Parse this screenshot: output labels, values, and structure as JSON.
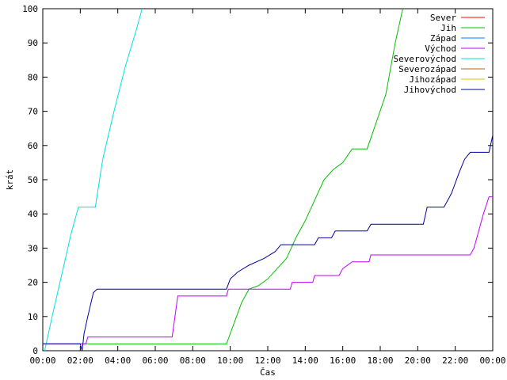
{
  "chart_data": {
    "type": "line",
    "title": "",
    "xlabel": "Čas",
    "ylabel": "krát",
    "xlim": [
      0,
      24
    ],
    "ylim": [
      0,
      100
    ],
    "x_ticks": [
      {
        "value": 0,
        "label": "00:00"
      },
      {
        "value": 2,
        "label": "02:00"
      },
      {
        "value": 4,
        "label": "04:00"
      },
      {
        "value": 6,
        "label": "06:00"
      },
      {
        "value": 8,
        "label": "08:00"
      },
      {
        "value": 10,
        "label": "10:00"
      },
      {
        "value": 12,
        "label": "12:00"
      },
      {
        "value": 14,
        "label": "14:00"
      },
      {
        "value": 16,
        "label": "16:00"
      },
      {
        "value": 18,
        "label": "18:00"
      },
      {
        "value": 20,
        "label": "20:00"
      },
      {
        "value": 22,
        "label": "22:00"
      },
      {
        "value": 24,
        "label": "00:00"
      }
    ],
    "y_ticks": [
      0,
      10,
      20,
      30,
      40,
      50,
      60,
      70,
      80,
      90,
      100
    ],
    "grid": false,
    "legend_position": "top-right",
    "series": [
      {
        "name": "Sever",
        "color": "#ff0000",
        "points": []
      },
      {
        "name": "Jih",
        "color": "#00c000",
        "points": [
          [
            0,
            2
          ],
          [
            9.8,
            2
          ],
          [
            10.2,
            8
          ],
          [
            10.6,
            14
          ],
          [
            11.0,
            18
          ],
          [
            11.5,
            19
          ],
          [
            12.0,
            21
          ],
          [
            12.5,
            24
          ],
          [
            13.0,
            27
          ],
          [
            13.5,
            33
          ],
          [
            14.0,
            38
          ],
          [
            14.5,
            44
          ],
          [
            15.0,
            50
          ],
          [
            15.5,
            53
          ],
          [
            16.0,
            55
          ],
          [
            16.5,
            59
          ],
          [
            17.3,
            59
          ],
          [
            17.8,
            67
          ],
          [
            18.3,
            75
          ],
          [
            18.8,
            90
          ],
          [
            19.2,
            100
          ]
        ]
      },
      {
        "name": "Západ",
        "color": "#0080ff",
        "points": []
      },
      {
        "name": "Východ",
        "color": "#c000ff",
        "points": [
          [
            0,
            2
          ],
          [
            2.3,
            2
          ],
          [
            2.4,
            4
          ],
          [
            6.9,
            4
          ],
          [
            7.2,
            16
          ],
          [
            9.8,
            16
          ],
          [
            9.9,
            18
          ],
          [
            13.2,
            18
          ],
          [
            13.3,
            20
          ],
          [
            14.4,
            20
          ],
          [
            14.5,
            22
          ],
          [
            15.8,
            22
          ],
          [
            16.0,
            24
          ],
          [
            16.5,
            26
          ],
          [
            17.4,
            26
          ],
          [
            17.5,
            28
          ],
          [
            22.8,
            28
          ],
          [
            23.0,
            30
          ],
          [
            23.5,
            40
          ],
          [
            23.8,
            45
          ],
          [
            24,
            45
          ]
        ]
      },
      {
        "name": "Severovýchod",
        "color": "#00e0e0",
        "points": [
          [
            0.1,
            0
          ],
          [
            0.5,
            10
          ],
          [
            1.0,
            22
          ],
          [
            1.5,
            34
          ],
          [
            1.9,
            42
          ],
          [
            2.8,
            42
          ],
          [
            3.2,
            56
          ],
          [
            3.8,
            70
          ],
          [
            4.4,
            83
          ],
          [
            5.0,
            94
          ],
          [
            5.3,
            100
          ]
        ]
      },
      {
        "name": "Severozápad",
        "color": "#c06000",
        "points": []
      },
      {
        "name": "Jihozápad",
        "color": "#e0c000",
        "points": []
      },
      {
        "name": "Jihovýchod",
        "color": "#0000a0",
        "points": [
          [
            0,
            2
          ],
          [
            2.0,
            2
          ],
          [
            2.1,
            0
          ],
          [
            2.2,
            5
          ],
          [
            2.4,
            10
          ],
          [
            2.7,
            17
          ],
          [
            2.9,
            18
          ],
          [
            9.8,
            18
          ],
          [
            10.0,
            21
          ],
          [
            10.4,
            23
          ],
          [
            11.0,
            25
          ],
          [
            11.8,
            27
          ],
          [
            12.4,
            29
          ],
          [
            12.7,
            31
          ],
          [
            14.5,
            31
          ],
          [
            14.7,
            33
          ],
          [
            15.4,
            33
          ],
          [
            15.6,
            35
          ],
          [
            17.3,
            35
          ],
          [
            17.5,
            37
          ],
          [
            20.3,
            37
          ],
          [
            20.5,
            42
          ],
          [
            21.4,
            42
          ],
          [
            21.8,
            46
          ],
          [
            22.2,
            52
          ],
          [
            22.5,
            56
          ],
          [
            22.8,
            58
          ],
          [
            23.8,
            58
          ],
          [
            24,
            63
          ]
        ]
      }
    ]
  }
}
